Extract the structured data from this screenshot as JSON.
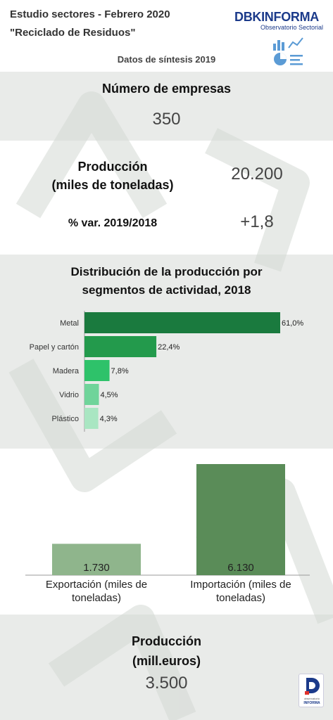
{
  "header": {
    "line1": "Estudio sectores - Febrero 2020",
    "line2": "\"Reciclado de Residuos\"",
    "subtitle": "Datos de síntesis 2019",
    "logo_main": "DBK",
    "logo_accent": "INFORMA",
    "logo_sub": "Observatorio Sectorial"
  },
  "empresas": {
    "label": "Número de empresas",
    "value": "350"
  },
  "produccion": {
    "label_line1": "Producción",
    "label_line2": "(miles de toneladas)",
    "value": "20.200",
    "var_label": "% var. 2019/2018",
    "var_value": "+1,8"
  },
  "produccion_euros": {
    "label_line1": "Producción",
    "label_line2": "(mill.euros)",
    "value": "3.500"
  },
  "footer_logo": {
    "text_top": "observatorio",
    "text_bottom": "INFORMA"
  },
  "colors": {
    "grey_band": "#e9ebe9",
    "metal": "#1a7a3e",
    "papel": "#239a4c",
    "madera": "#2ec26a",
    "vidrio": "#6fd49a",
    "plastico": "#a9e6c2",
    "export": "#8fb58c",
    "import": "#5a8c58",
    "logo_blue": "#1b3a8a",
    "logo_red": "#e0312b"
  },
  "chart_data": [
    {
      "type": "bar",
      "orientation": "horizontal",
      "title_line1": "Distribución de la producción por",
      "title_line2": "segmentos de actividad, 2018",
      "categories": [
        "Metal",
        "Papel y cartón",
        "Madera",
        "Vidrio",
        "Plástico"
      ],
      "values": [
        61.0,
        22.4,
        7.8,
        4.5,
        4.3
      ],
      "value_labels": [
        "61,0%",
        "22,4%",
        "7,8%",
        "4,5%",
        "4,3%"
      ],
      "xlim": [
        0,
        61.0
      ],
      "grid": false
    },
    {
      "type": "bar",
      "orientation": "vertical",
      "categories": [
        [
          "Exportación (miles de",
          "toneladas)"
        ],
        [
          "Importación (miles de",
          "toneladas)"
        ]
      ],
      "values": [
        1730,
        6130
      ],
      "value_labels": [
        "1.730",
        "6.130"
      ],
      "ylim": [
        0,
        6130
      ],
      "grid": false
    }
  ]
}
